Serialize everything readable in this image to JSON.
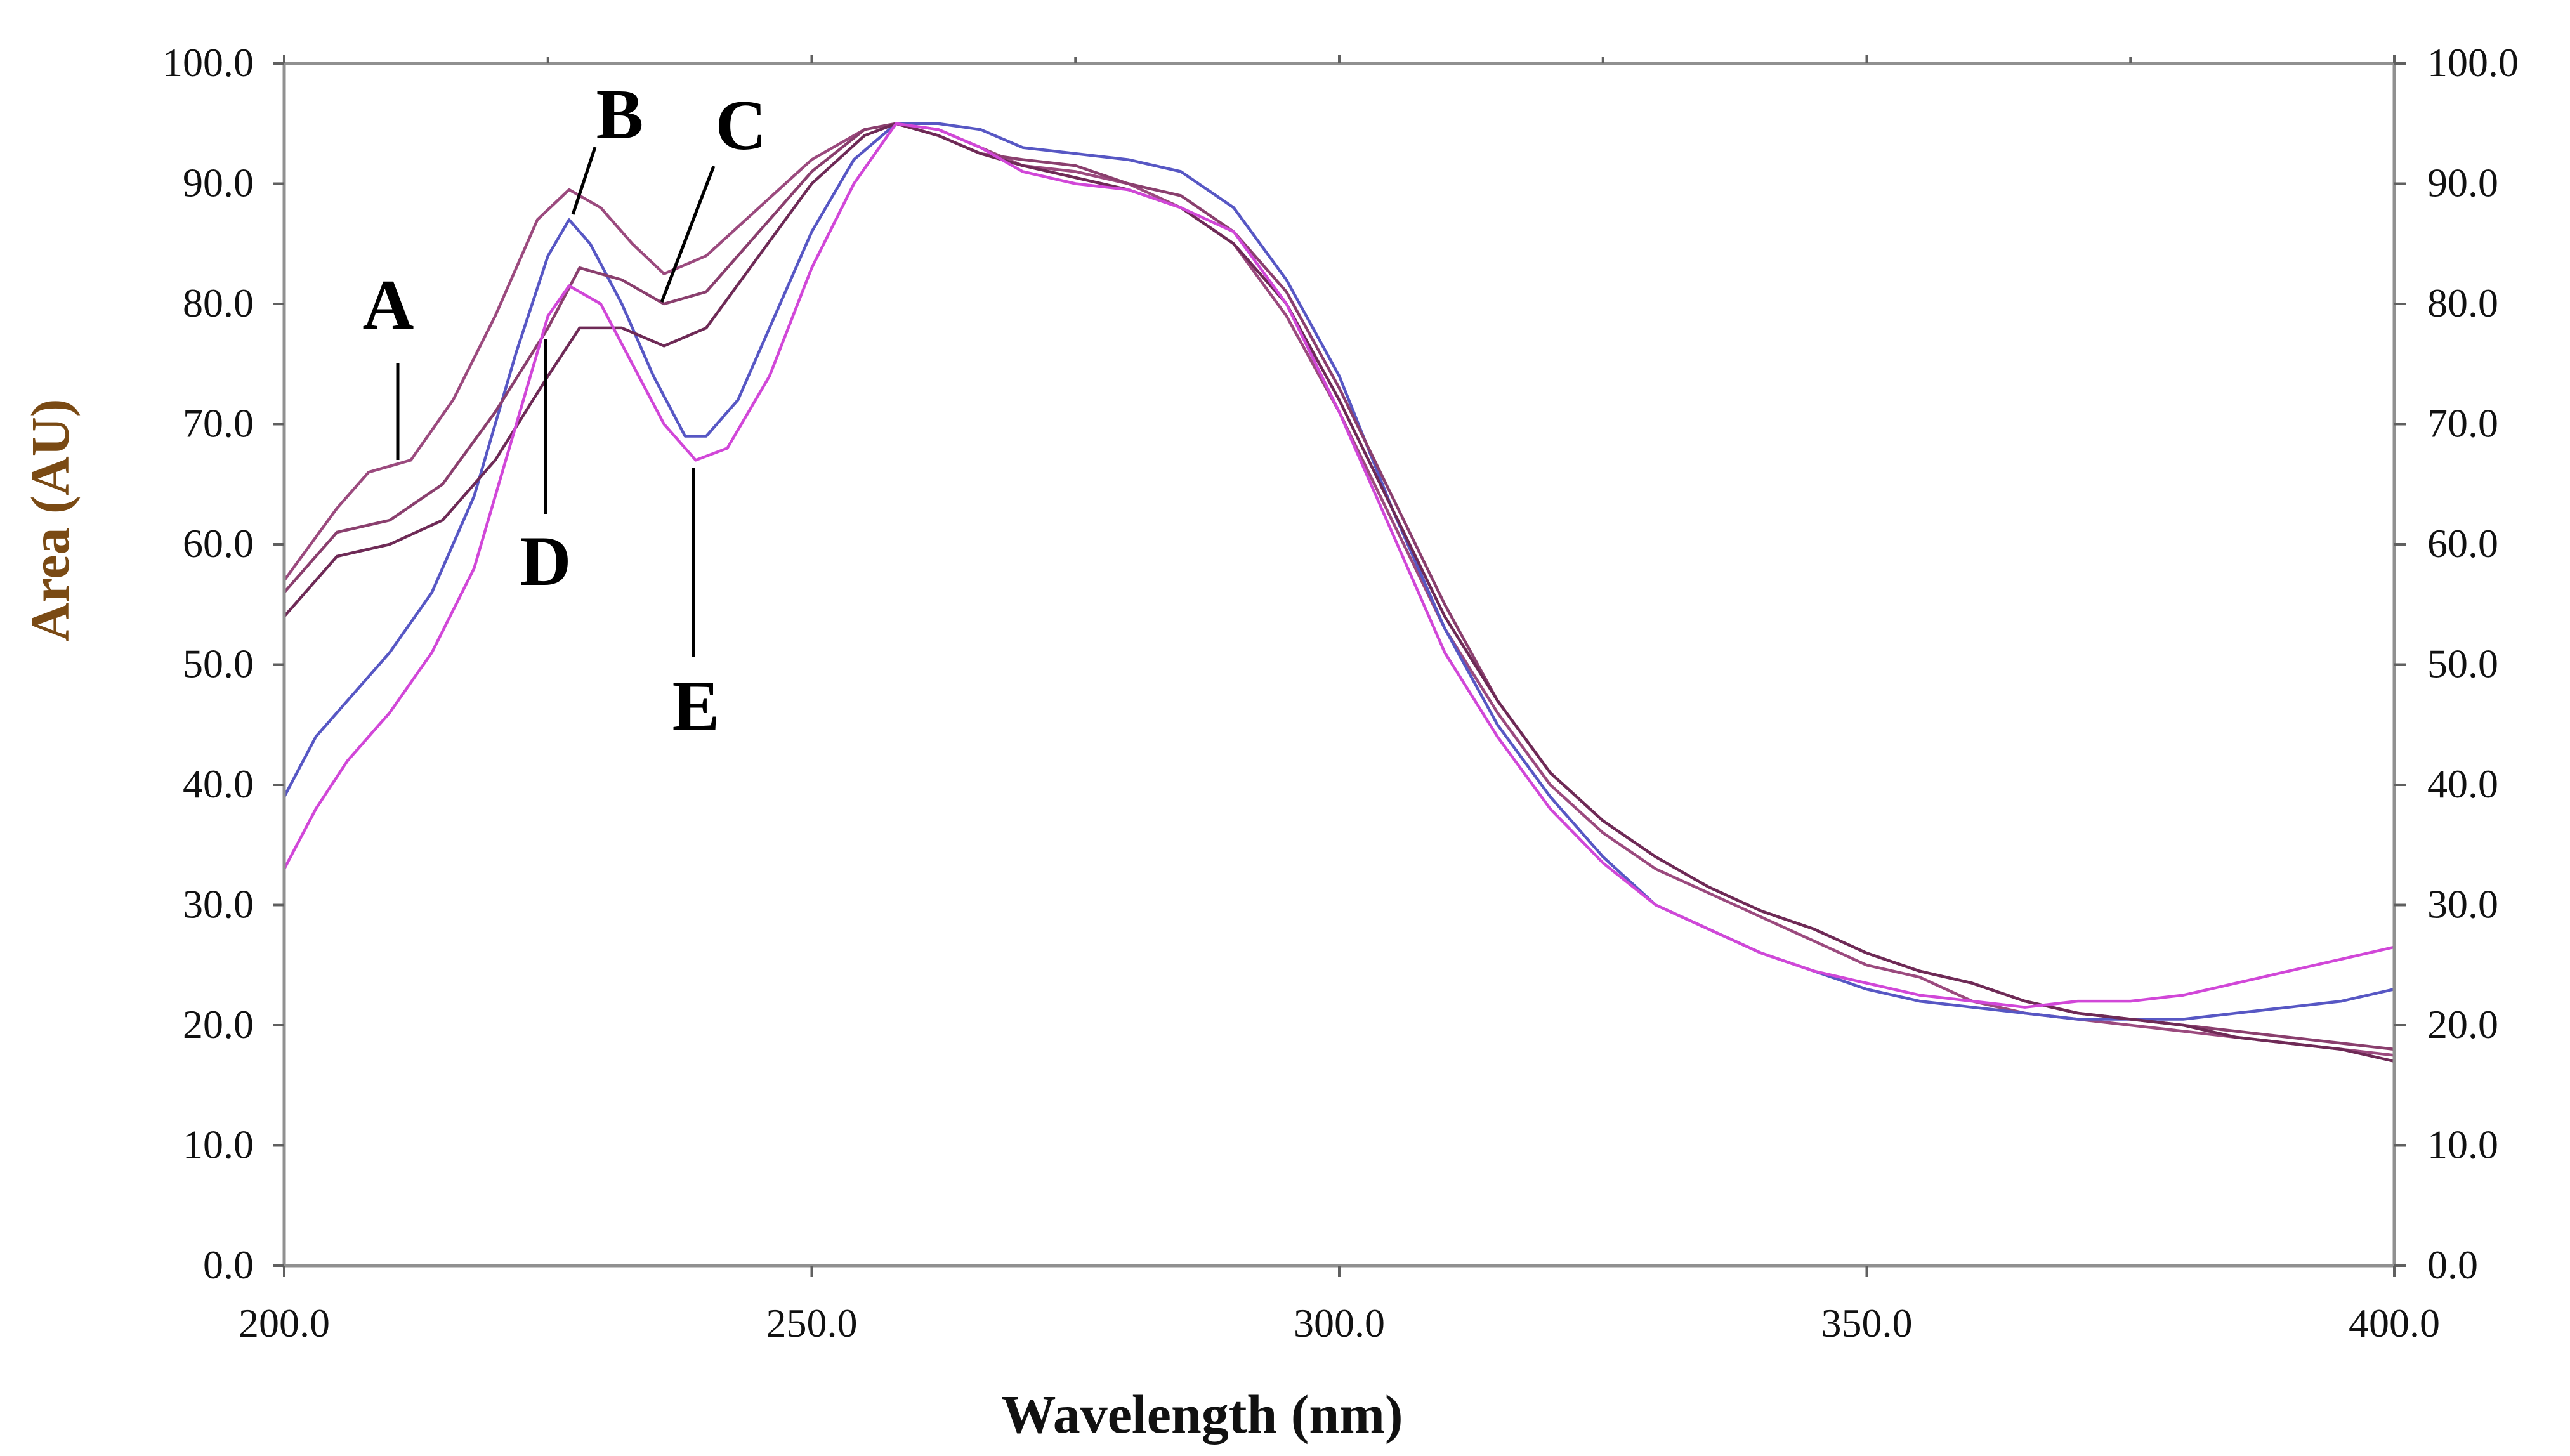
{
  "chart_data": {
    "type": "line",
    "title": "",
    "xlabel": "Wavelength (nm)",
    "ylabel": "Area (AU)",
    "xlim": [
      200,
      400
    ],
    "ylim": [
      0,
      100
    ],
    "x_ticks": [
      "200.0",
      "250.0",
      "300.0",
      "350.0",
      "400.0"
    ],
    "y_ticks": [
      "0.0",
      "10.0",
      "20.0",
      "30.0",
      "40.0",
      "50.0",
      "60.0",
      "70.0",
      "80.0",
      "90.0",
      "100.0"
    ],
    "right_y_ticks": [
      "0.0",
      "10.0",
      "20.0",
      "30.0",
      "40.0",
      "50.0",
      "60.0",
      "70.0",
      "80.0",
      "90.0",
      "100.0"
    ],
    "grid": false,
    "legend": "inline letter labels",
    "series": [
      {
        "name": "A",
        "color": "#9b4a7e",
        "x": [
          200,
          205,
          208,
          212,
          216,
          220,
          224,
          227,
          230,
          233,
          236,
          240,
          245,
          250,
          255,
          258,
          262,
          266,
          270,
          275,
          280,
          285,
          290,
          295,
          300,
          305,
          310,
          315,
          320,
          325,
          330,
          335,
          340,
          345,
          350,
          355,
          360,
          365,
          370,
          375,
          380,
          385,
          390,
          395,
          400
        ],
        "y": [
          57,
          63,
          66,
          67,
          72,
          79,
          87,
          89.5,
          88,
          85,
          82.5,
          84,
          88,
          92,
          94.5,
          95,
          94.5,
          93,
          91.5,
          91,
          90,
          88,
          85,
          79,
          71,
          62,
          53,
          46,
          40,
          36,
          33,
          31,
          29,
          27,
          25,
          24,
          22,
          21,
          20.5,
          20,
          19.5,
          19,
          18.5,
          18,
          17.5
        ]
      },
      {
        "name": "B",
        "color": "#5757c4",
        "x": [
          200,
          203,
          206,
          210,
          214,
          218,
          222,
          225,
          227,
          229,
          232,
          235,
          238,
          240,
          243,
          246,
          250,
          254,
          258,
          262,
          266,
          270,
          275,
          280,
          285,
          290,
          295,
          300,
          305,
          310,
          315,
          320,
          325,
          330,
          335,
          340,
          345,
          350,
          355,
          360,
          365,
          370,
          375,
          380,
          385,
          390,
          395,
          400
        ],
        "y": [
          39,
          44,
          47,
          51,
          56,
          64,
          76,
          84,
          87,
          85,
          80,
          74,
          69,
          69,
          72,
          78,
          86,
          92,
          95,
          95,
          94.5,
          93,
          92.5,
          92,
          91,
          88,
          82,
          74,
          63,
          53,
          45,
          39,
          34,
          30,
          28,
          26,
          24.5,
          23,
          22,
          21.5,
          21,
          20.5,
          20.5,
          20.5,
          21,
          21.5,
          22,
          23
        ]
      },
      {
        "name": "C",
        "color": "#8a3f6e",
        "x": [
          200,
          205,
          210,
          215,
          220,
          225,
          228,
          232,
          236,
          240,
          245,
          250,
          255,
          258,
          262,
          266,
          270,
          275,
          280,
          285,
          290,
          295,
          300,
          305,
          310,
          315,
          320,
          325,
          330,
          335,
          340,
          345,
          350,
          355,
          360,
          365,
          370,
          375,
          380,
          385,
          390,
          395,
          400
        ],
        "y": [
          56,
          61,
          62,
          65,
          71,
          78,
          83,
          82,
          80,
          81,
          86,
          91,
          94.5,
          95,
          94,
          92.5,
          92,
          91.5,
          90,
          89,
          86,
          81,
          73,
          64,
          55,
          47,
          41,
          37,
          34,
          31.5,
          29.5,
          28,
          26,
          24.5,
          23.5,
          22,
          21,
          20.5,
          20,
          19.5,
          19,
          18.5,
          18
        ]
      },
      {
        "name": "D",
        "color": "#6e2a56",
        "x": [
          200,
          205,
          210,
          215,
          220,
          225,
          228,
          232,
          236,
          240,
          245,
          250,
          255,
          258,
          262,
          266,
          270,
          275,
          280,
          285,
          290,
          295,
          300,
          305,
          310,
          315,
          320,
          325,
          330,
          335,
          340,
          345,
          350,
          355,
          360,
          365,
          370,
          375,
          380,
          385,
          390,
          395,
          400
        ],
        "y": [
          54,
          59,
          60,
          62,
          67,
          74,
          78,
          78,
          76.5,
          78,
          84,
          90,
          94,
          95,
          94,
          92.5,
          91.5,
          90.5,
          89.5,
          88,
          85,
          80,
          72,
          63,
          54,
          47,
          41,
          37,
          34,
          31.5,
          29.5,
          28,
          26,
          24.5,
          23.5,
          22,
          21,
          20.5,
          20,
          19,
          18.5,
          18,
          17
        ]
      },
      {
        "name": "E",
        "color": "#d147d8",
        "x": [
          200,
          203,
          206,
          210,
          214,
          218,
          222,
          225,
          227,
          230,
          233,
          236,
          239,
          242,
          246,
          250,
          254,
          258,
          262,
          266,
          270,
          275,
          280,
          285,
          290,
          295,
          300,
          305,
          310,
          315,
          320,
          325,
          330,
          335,
          340,
          345,
          350,
          355,
          360,
          365,
          370,
          375,
          380,
          385,
          390,
          395,
          400
        ],
        "y": [
          33,
          38,
          42,
          46,
          51,
          58,
          70,
          79,
          81.5,
          80,
          75,
          70,
          67,
          68,
          74,
          83,
          90,
          95,
          94.5,
          93,
          91,
          90,
          89.5,
          88,
          86,
          80,
          71,
          61,
          51,
          44,
          38,
          33.5,
          30,
          28,
          26,
          24.5,
          23.5,
          22.5,
          22,
          21.5,
          22,
          22,
          22.5,
          23.5,
          24.5,
          25.5,
          26.5
        ]
      }
    ],
    "annotations": [
      "A",
      "B",
      "C",
      "D",
      "E"
    ]
  }
}
